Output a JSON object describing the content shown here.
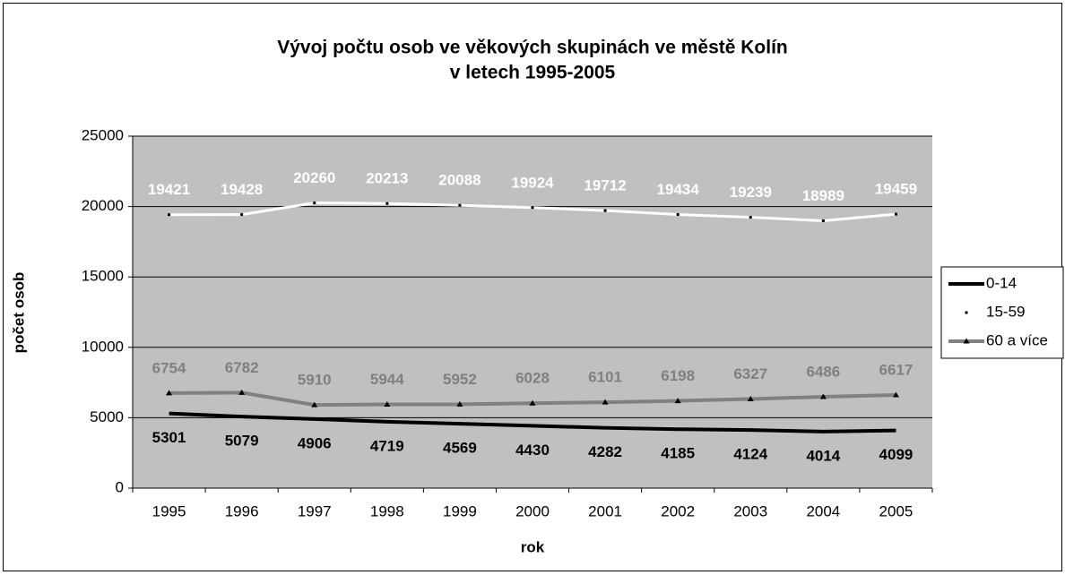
{
  "chart_data": {
    "type": "line",
    "title": [
      "Vývoj počtu osob ve věkových skupinách ve městě Kolín",
      "v letech 1995-2005"
    ],
    "x_label": "rok",
    "y_label": "počet osob",
    "categories": [
      "1995",
      "1996",
      "1997",
      "1998",
      "1999",
      "2000",
      "2001",
      "2002",
      "2003",
      "2004",
      "2005"
    ],
    "series": [
      {
        "name": "0-14",
        "color": "#000000",
        "marker": "none",
        "label_side": "below",
        "values": [
          5301,
          5079,
          4906,
          4719,
          4569,
          4430,
          4282,
          4185,
          4124,
          4014,
          4099
        ]
      },
      {
        "name": "15-59",
        "color": "#ffffff",
        "marker": "dot",
        "label_side": "above",
        "values": [
          19421,
          19428,
          20260,
          20213,
          20088,
          19924,
          19712,
          19434,
          19239,
          18989,
          19459
        ]
      },
      {
        "name": "60 a více",
        "color": "#808080",
        "marker": "triangle",
        "label_side": "above",
        "values": [
          6754,
          6782,
          5910,
          5944,
          5952,
          6028,
          6101,
          6198,
          6327,
          6486,
          6617
        ]
      }
    ],
    "ylim": [
      0,
      25000
    ],
    "yticks": [
      0,
      5000,
      10000,
      15000,
      20000,
      25000
    ],
    "grid": true,
    "plot_background": "#c0c0c0",
    "legend": "right"
  }
}
